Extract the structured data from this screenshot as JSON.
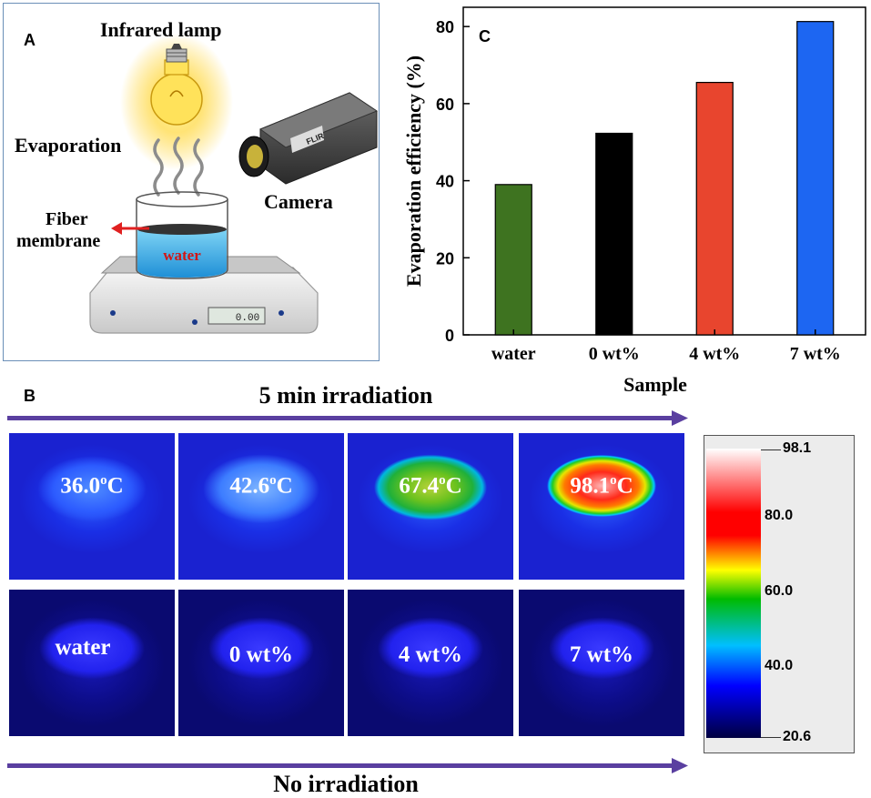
{
  "panel_a": {
    "label": "A",
    "lamp_label": "Infrared lamp",
    "evaporation_label": "Evaporation",
    "camera_label": "Camera",
    "fiber_label": "Fiber",
    "membrane_label": "membrane",
    "water_label": "water",
    "camera_brand": "FLIR",
    "balance_readout": "0.00"
  },
  "panel_b": {
    "label": "B",
    "top_arrow_label": "5 min irradiation",
    "bottom_arrow_label": "No irradiation",
    "top_row": [
      {
        "value": "36.0",
        "unit_sup": "o",
        "unit": "C",
        "peak": 36.0
      },
      {
        "value": "42.6",
        "unit_sup": "o",
        "unit": "C",
        "peak": 42.6
      },
      {
        "value": "67.4",
        "unit_sup": "o",
        "unit": "C",
        "peak": 67.4
      },
      {
        "value": "98.1",
        "unit_sup": "o",
        "unit": "C",
        "peak": 98.1
      }
    ],
    "bottom_row": [
      "water",
      "0 wt%",
      "4 wt%",
      "7 wt%"
    ],
    "colorbar": {
      "max": "98.1",
      "min": "20.6",
      "ticks": [
        "80.0",
        "60.0",
        "40.0"
      ],
      "colors": {
        "white": "#ffffff",
        "red": "#ff0000",
        "yellow": "#ffff00",
        "green": "#00bb00",
        "cyan": "#00bfff",
        "blue": "#0000ff",
        "navy": "#000040"
      }
    }
  },
  "chart_data": {
    "type": "bar",
    "panel_label": "C",
    "categories": [
      "water",
      "0 wt%",
      "4 wt%",
      "7 wt%"
    ],
    "values": [
      39,
      52.3,
      65.5,
      81.3
    ],
    "colors": [
      "#3e7320",
      "#000000",
      "#e8452e",
      "#1d66f2"
    ],
    "title": "",
    "xlabel": "Sample",
    "ylabel": "Evaporation efficiency (%)",
    "ylim": [
      0,
      85
    ],
    "yticks": [
      0,
      20,
      40,
      60,
      80
    ],
    "grid": false
  }
}
